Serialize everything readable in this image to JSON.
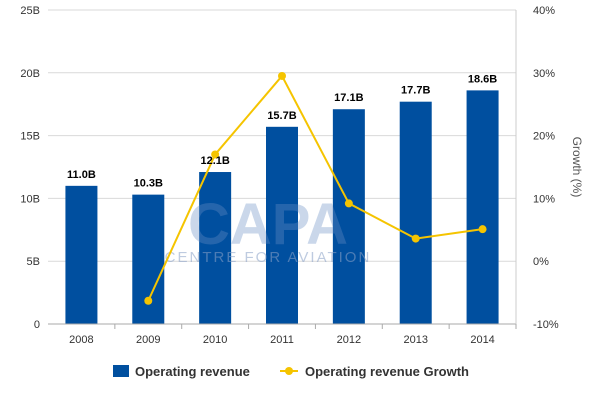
{
  "chart_data": {
    "type": "bar",
    "categories": [
      "2008",
      "2009",
      "2010",
      "2011",
      "2012",
      "2013",
      "2014"
    ],
    "series": [
      {
        "name": "Operating revenue",
        "type": "bar",
        "axis": "left",
        "color": "#004f9f",
        "values": [
          11.0,
          10.3,
          12.1,
          15.7,
          17.1,
          17.7,
          18.6
        ],
        "labels": [
          "11.0B",
          "10.3B",
          "12.1B",
          "15.7B",
          "17.1B",
          "17.7B",
          "18.6B"
        ]
      },
      {
        "name": "Operating revenue Growth",
        "type": "line",
        "axis": "right",
        "color": "#f5c400",
        "values": [
          null,
          -6.3,
          17.0,
          29.5,
          9.2,
          3.6,
          5.1
        ]
      }
    ],
    "y_left": {
      "ylim": [
        0,
        25
      ],
      "ticks": [
        0,
        5,
        10,
        15,
        20,
        25
      ],
      "tick_labels": [
        "0",
        "5B",
        "10B",
        "15B",
        "20B",
        "25B"
      ]
    },
    "y_right": {
      "label": "Growth (%)",
      "ylim": [
        -10,
        40
      ],
      "ticks": [
        -10,
        0,
        10,
        20,
        30,
        40
      ],
      "tick_labels": [
        "-10%",
        "0%",
        "10%",
        "20%",
        "30%",
        "40%"
      ]
    },
    "grid": "horizontal",
    "legend_position": "bottom-center"
  },
  "watermark": {
    "logo": "CAPA",
    "text": "CENTRE FOR AVIATION"
  }
}
